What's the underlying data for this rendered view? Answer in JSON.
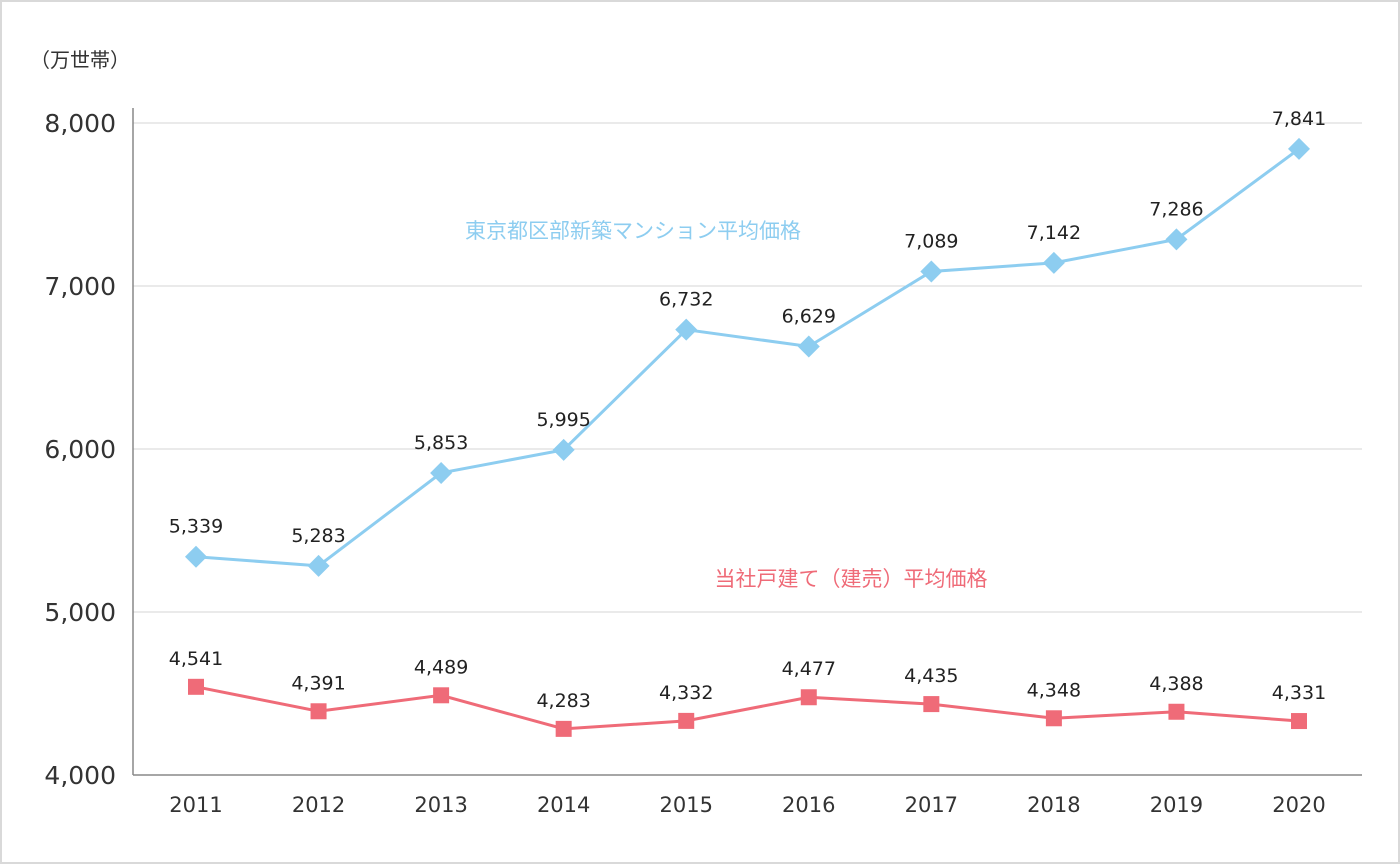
{
  "chart_data": {
    "type": "line",
    "unit_label": "（万世帯）",
    "categories": [
      "2011",
      "2012",
      "2013",
      "2014",
      "2015",
      "2016",
      "2017",
      "2018",
      "2019",
      "2020"
    ],
    "ylim": [
      4000,
      8000
    ],
    "yticks": [
      4000,
      5000,
      6000,
      7000,
      8000
    ],
    "ytick_labels": [
      "4,000",
      "5,000",
      "6,000",
      "7,000",
      "8,000"
    ],
    "grid": true,
    "series": [
      {
        "name": "東京都区部新築マンション平均価格",
        "color": "#8dcdf0",
        "marker": "diamond",
        "values": [
          5339,
          5283,
          5853,
          5995,
          6732,
          6629,
          7089,
          7142,
          7286,
          7841
        ],
        "labels": [
          "5,339",
          "5,283",
          "5,853",
          "5,995",
          "6,732",
          "6,629",
          "7,089",
          "7,142",
          "7,286",
          "7,841"
        ]
      },
      {
        "name": "当社戸建て（建売）平均価格",
        "color": "#ef6b78",
        "marker": "square",
        "values": [
          4541,
          4391,
          4489,
          4283,
          4332,
          4477,
          4435,
          4348,
          4388,
          4331
        ],
        "labels": [
          "4,541",
          "4,391",
          "4,489",
          "4,283",
          "4,332",
          "4,477",
          "4,435",
          "4,348",
          "4,388",
          "4,331"
        ]
      }
    ]
  }
}
